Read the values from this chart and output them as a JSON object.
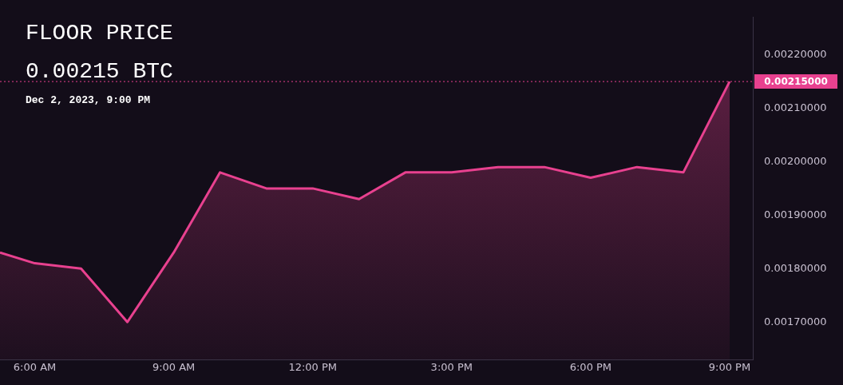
{
  "chart_data": {
    "type": "area",
    "title": "FLOOR PRICE",
    "subtitle": "0.00215 BTC",
    "annotations": [
      "Dec 2, 2023, 9:00 PM"
    ],
    "x": [
      5.25,
      6,
      7,
      8,
      9,
      10,
      11,
      12,
      13,
      14,
      15,
      16,
      17,
      18,
      19,
      20,
      21
    ],
    "series": [
      {
        "color": "#e8418f",
        "values": [
          0.00183,
          0.00181,
          0.0018,
          0.0017,
          0.00183,
          0.00198,
          0.00195,
          0.00195,
          0.00193,
          0.00198,
          0.00198,
          0.00199,
          0.00199,
          0.00197,
          0.00199,
          0.00198,
          0.00215
        ]
      }
    ],
    "xlim": [
      5.25,
      21.5
    ],
    "xticks": [
      {
        "value": 6,
        "label": "6:00 AM"
      },
      {
        "value": 9,
        "label": "9:00 AM"
      },
      {
        "value": 12,
        "label": "12:00 PM"
      },
      {
        "value": 15,
        "label": "3:00 PM"
      },
      {
        "value": 18,
        "label": "6:00 PM"
      },
      {
        "value": 21,
        "label": "9:00 PM"
      }
    ],
    "ylim": [
      0.00163,
      0.00227
    ],
    "yticks": [
      {
        "value": 0.0017,
        "label": "0.00170000"
      },
      {
        "value": 0.0018,
        "label": "0.00180000"
      },
      {
        "value": 0.0019,
        "label": "0.00190000"
      },
      {
        "value": 0.002,
        "label": "0.00200000"
      },
      {
        "value": 0.0021,
        "label": "0.00210000"
      },
      {
        "value": 0.0022,
        "label": "0.00220000"
      }
    ],
    "ref_lines": [
      {
        "axis": "y",
        "value": 0.00215,
        "label": "0.00215000",
        "color": "#e8418f",
        "line_style": "dotted"
      }
    ],
    "grid": false,
    "legend": false,
    "marker": "none",
    "line_style": "solid"
  }
}
